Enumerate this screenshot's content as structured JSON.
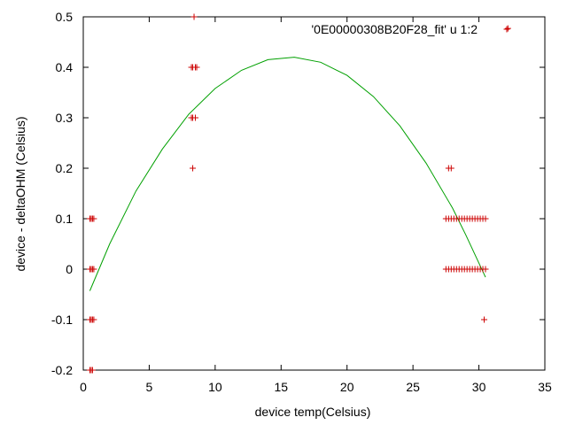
{
  "chart_data": {
    "type": "scatter",
    "title": "",
    "xlabel": "device temp(Celsius)",
    "ylabel": "device - deltaOHM (Celsius)",
    "xlim": [
      0,
      35
    ],
    "ylim": [
      -0.2,
      0.5
    ],
    "xticks": [
      0,
      5,
      10,
      15,
      20,
      25,
      30,
      35
    ],
    "yticks": [
      -0.2,
      -0.1,
      0,
      0.1,
      0.2,
      0.3,
      0.4,
      0.5
    ],
    "xtick_labels": [
      "0",
      "5",
      "10",
      "15",
      "20",
      "25",
      "30",
      "35"
    ],
    "ytick_labels": [
      "-0.2",
      "-0.1",
      "0",
      "0.1",
      "0.2",
      "0.3",
      "0.4",
      "0.5"
    ],
    "grid": false,
    "legend_position": "top-right",
    "series": [
      {
        "name": "'0E00000308B20F28_fit' u 1:2",
        "kind": "points",
        "marker": "plus",
        "color": "#cc0000",
        "x": [
          0.5,
          0.6,
          0.7,
          0.8,
          0.5,
          0.6,
          0.7,
          0.8,
          0.5,
          0.6,
          0.7,
          0.8,
          0.5,
          0.6,
          0.7,
          8.2,
          8.3,
          8.5,
          8.6,
          8.2,
          8.3,
          8.5,
          8.3,
          8.4,
          27.5,
          27.7,
          27.9,
          28.1,
          28.3,
          28.5,
          28.7,
          28.9,
          29.1,
          29.3,
          29.5,
          29.7,
          29.9,
          30.1,
          30.3,
          30.5,
          27.5,
          27.7,
          27.9,
          28.1,
          28.3,
          28.5,
          28.7,
          28.9,
          29.1,
          29.3,
          29.5,
          29.7,
          29.9,
          30.1,
          30.3,
          30.5,
          27.7,
          27.9,
          30.4,
          32.2
        ],
        "y": [
          0.1,
          0.1,
          0.1,
          0.1,
          0,
          0,
          0,
          0,
          -0.1,
          -0.1,
          -0.1,
          -0.1,
          -0.2,
          -0.2,
          -0.2,
          0.4,
          0.4,
          0.4,
          0.4,
          0.3,
          0.3,
          0.3,
          0.2,
          0.5,
          0.1,
          0.1,
          0.1,
          0.1,
          0.1,
          0.1,
          0.1,
          0.1,
          0.1,
          0.1,
          0.1,
          0.1,
          0.1,
          0.1,
          0.1,
          0.1,
          0,
          0,
          0,
          0,
          0,
          0,
          0,
          0,
          0,
          0,
          0,
          0,
          0,
          0,
          0,
          0,
          0.2,
          0.2,
          -0.1,
          0.477
        ]
      },
      {
        "kind": "line",
        "color": "#00a000",
        "x": [
          0.5,
          2,
          4,
          6,
          8,
          10,
          12,
          14,
          16,
          18,
          20,
          22,
          24,
          26,
          28,
          29,
          30,
          30.5
        ],
        "y": [
          -0.043,
          0.05,
          0.155,
          0.238,
          0.307,
          0.358,
          0.394,
          0.415,
          0.42,
          0.41,
          0.384,
          0.342,
          0.284,
          0.21,
          0.121,
          0.068,
          0.012,
          -0.016
        ]
      }
    ]
  }
}
